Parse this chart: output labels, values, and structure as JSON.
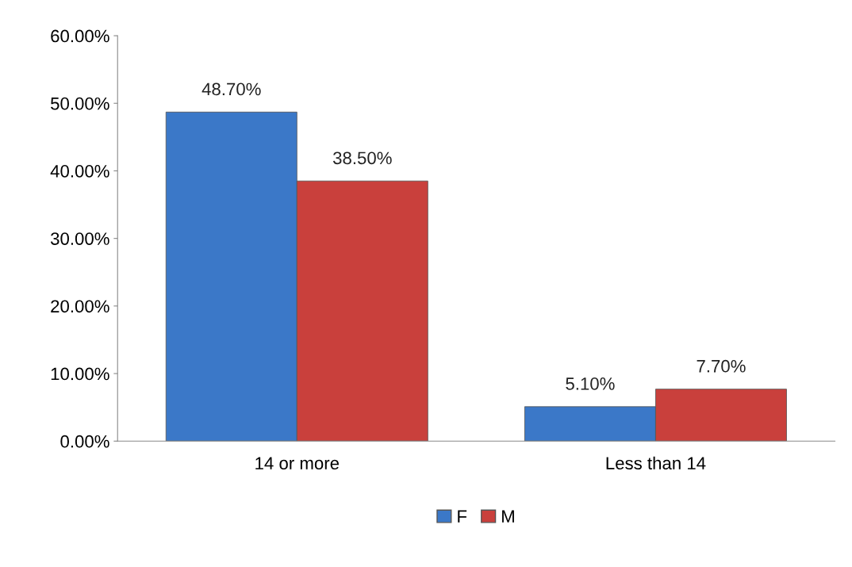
{
  "chart_data": {
    "type": "bar",
    "categories": [
      "14 or more",
      "Less than 14"
    ],
    "series": [
      {
        "name": "F",
        "color": "#3b78c8",
        "values": [
          48.7,
          5.1
        ],
        "value_labels": [
          "48.70%",
          "5.10%"
        ]
      },
      {
        "name": "M",
        "color": "#c9403c",
        "values": [
          38.5,
          7.7
        ],
        "value_labels": [
          "38.50%",
          "7.70%"
        ]
      }
    ],
    "ylim": [
      0,
      60
    ],
    "yticks": [
      {
        "value": 0,
        "label": "0.00%"
      },
      {
        "value": 10,
        "label": "10.00%"
      },
      {
        "value": 20,
        "label": "20.00%"
      },
      {
        "value": 30,
        "label": "30.00%"
      },
      {
        "value": 40,
        "label": "40.00%"
      },
      {
        "value": 50,
        "label": "50.00%"
      },
      {
        "value": 60,
        "label": "60.00%"
      }
    ],
    "grid": false,
    "legend": "bottom"
  }
}
